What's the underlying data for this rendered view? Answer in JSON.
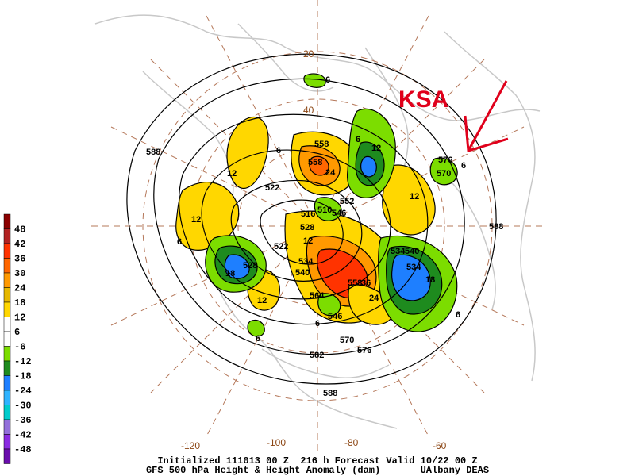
{
  "map": {
    "title_line1": "Initialized 111013 00 Z  216 h Forecast Valid 10/22 00 Z",
    "title_line2": "GFS 500 hPa Height & Height Anomaly (dam)       UAlbany DEAS",
    "annotation": "KSA",
    "latitude_labels": [
      "20",
      "40"
    ],
    "longitude_labels": [
      "-120",
      "-100",
      "-80",
      "-60"
    ],
    "height_labels": [
      "588",
      "576",
      "570",
      "588",
      "522",
      "516",
      "510",
      "528",
      "522",
      "534",
      "540",
      "546",
      "558",
      "552",
      "570",
      "576",
      "582",
      "588",
      "558",
      "546",
      "540",
      "534",
      "528",
      "534",
      "558",
      "564"
    ],
    "anomaly_labels": [
      "6",
      "6",
      "6",
      "12",
      "12",
      "12",
      "12",
      "12",
      "12",
      "18",
      "18",
      "24",
      "24",
      "36",
      "6",
      "6",
      "6",
      "6",
      "6"
    ],
    "legend": {
      "units": "dam",
      "levels": [
        48,
        42,
        36,
        30,
        24,
        18,
        12,
        6,
        -6,
        -12,
        -18,
        -24,
        -30,
        -36,
        -42,
        -48
      ],
      "colors": [
        "#8b0000",
        "#b22222",
        "#ff3300",
        "#ff6600",
        "#ff9900",
        "#e6b800",
        "#ffd700",
        "#ffffff",
        "#ffffff",
        "#7cdd00",
        "#1e8b1e",
        "#1e7fff",
        "#2fb4ff",
        "#00cccc",
        "#9370db",
        "#8a2be2",
        "#6a0dad"
      ]
    }
  }
}
